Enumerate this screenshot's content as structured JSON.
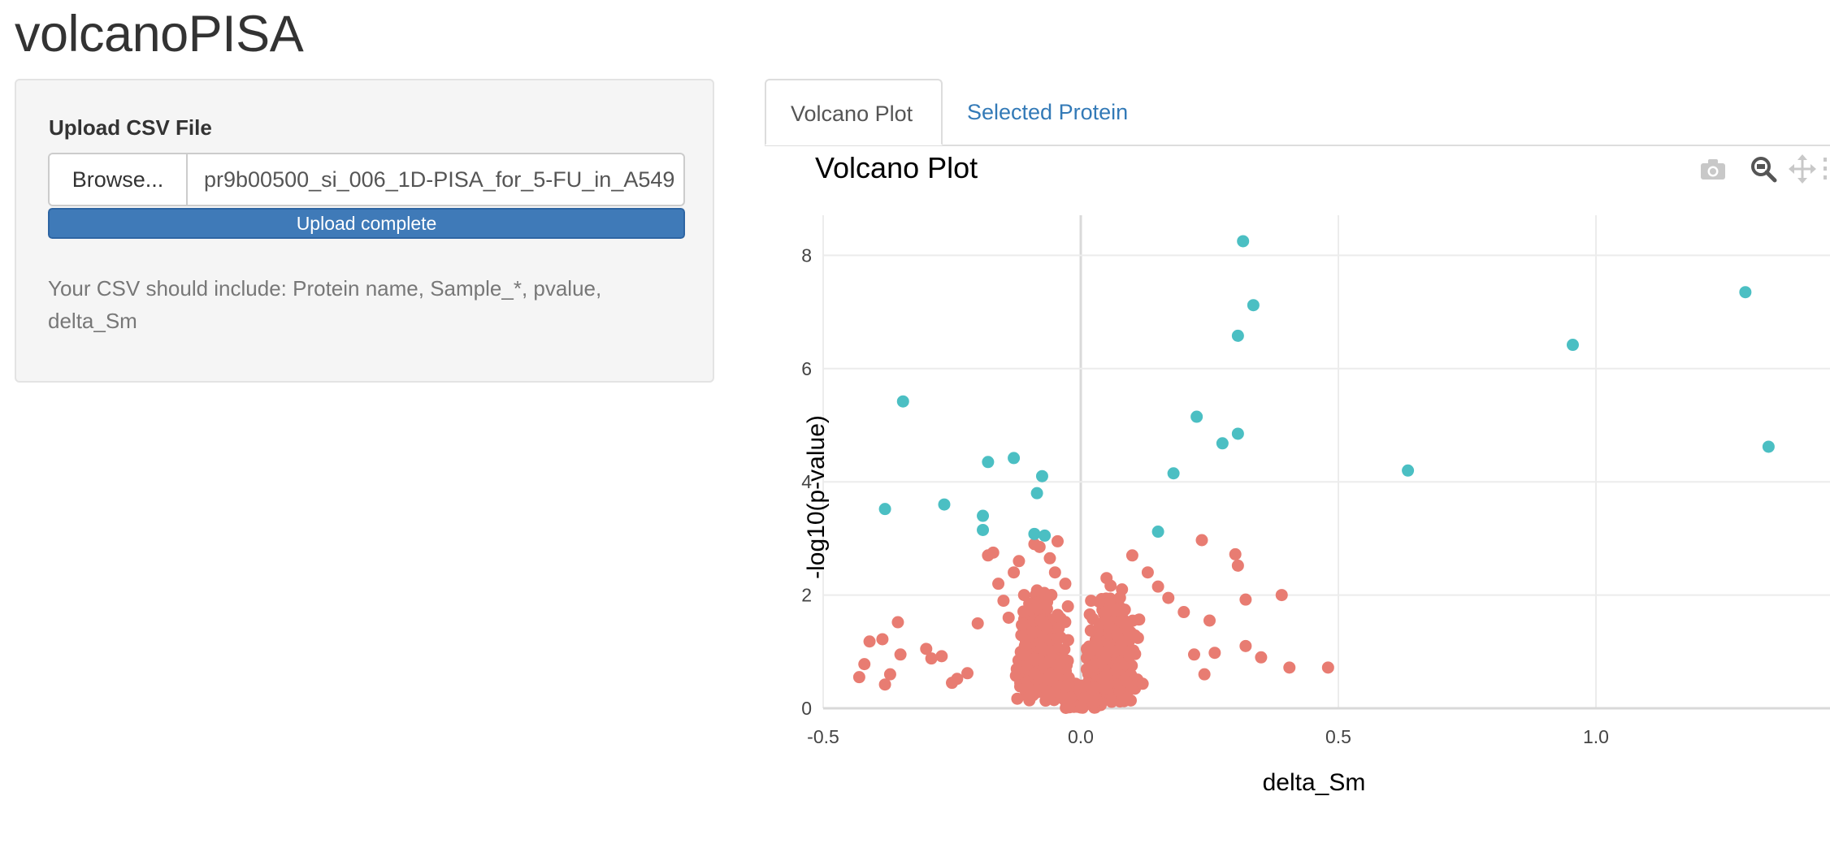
{
  "app": {
    "title": "volcanoPISA"
  },
  "sidebar": {
    "upload_label": "Upload CSV File",
    "browse_label": "Browse...",
    "file_name": "pr9b00500_si_006_1D-PISA_for_5-FU_in_A549",
    "progress_text": "Upload complete",
    "progress_fraction": 1.0,
    "help_text": "Your CSV should include: Protein name, Sample_*, pvalue, delta_Sm"
  },
  "tabs": [
    {
      "label": "Volcano Plot",
      "active": true
    },
    {
      "label": "Selected Protein",
      "active": false
    }
  ],
  "plot": {
    "title": "Volcano Plot",
    "modebar_icons": [
      "camera-icon",
      "zoom-icon",
      "pan-icon",
      "more-icon"
    ]
  },
  "colors": {
    "significant": "#4bbfc3",
    "nonsignificant": "#e87c72",
    "link": "#337ab7",
    "progress": "#3f7ab8"
  },
  "chart_data": {
    "type": "scatter",
    "title": "Volcano Plot",
    "xlabel": "delta_Sm",
    "ylabel": "-log10(p-value)",
    "xlim": [
      -0.5,
      1.4
    ],
    "ylim": [
      0,
      8.6
    ],
    "x_ticks": [
      "-0.5",
      "0.0",
      "0.5",
      "1.0"
    ],
    "y_ticks": [
      "0",
      "2",
      "4",
      "6",
      "8"
    ],
    "grid": true,
    "legend": "none",
    "series": [
      {
        "points": [
          [
            0.315,
            8.25
          ],
          [
            1.29,
            7.35
          ],
          [
            0.335,
            7.12
          ],
          [
            0.305,
            6.58
          ],
          [
            0.955,
            6.42
          ],
          [
            1.335,
            4.62
          ],
          [
            -0.345,
            5.42
          ],
          [
            0.225,
            5.15
          ],
          [
            0.305,
            4.85
          ],
          [
            0.275,
            4.68
          ],
          [
            -0.13,
            4.42
          ],
          [
            -0.18,
            4.35
          ],
          [
            0.635,
            4.2
          ],
          [
            0.18,
            4.15
          ],
          [
            -0.075,
            4.1
          ],
          [
            -0.085,
            3.8
          ],
          [
            -0.265,
            3.6
          ],
          [
            -0.19,
            3.4
          ],
          [
            -0.38,
            3.52
          ],
          [
            -0.19,
            3.15
          ],
          [
            0.15,
            3.12
          ],
          [
            -0.09,
            3.08
          ],
          [
            -0.07,
            3.05
          ]
        ]
      },
      {
        "points": [
          [
            -0.43,
            0.55
          ],
          [
            -0.42,
            0.78
          ],
          [
            -0.41,
            1.18
          ],
          [
            -0.385,
            1.22
          ],
          [
            -0.38,
            0.42
          ],
          [
            -0.37,
            0.6
          ],
          [
            -0.355,
            1.52
          ],
          [
            -0.35,
            0.95
          ],
          [
            -0.3,
            1.05
          ],
          [
            -0.29,
            0.88
          ],
          [
            -0.27,
            0.92
          ],
          [
            -0.25,
            0.45
          ],
          [
            -0.24,
            0.52
          ],
          [
            -0.22,
            0.62
          ],
          [
            -0.2,
            1.5
          ],
          [
            -0.18,
            2.7
          ],
          [
            -0.17,
            2.75
          ],
          [
            -0.16,
            2.2
          ],
          [
            -0.15,
            1.9
          ],
          [
            -0.14,
            1.6
          ],
          [
            -0.13,
            2.4
          ],
          [
            -0.12,
            2.6
          ],
          [
            -0.11,
            2.0
          ],
          [
            -0.09,
            2.9
          ],
          [
            -0.08,
            2.85
          ],
          [
            -0.06,
            2.65
          ],
          [
            -0.05,
            2.4
          ],
          [
            -0.045,
            2.95
          ],
          [
            -0.03,
            2.2
          ],
          [
            -0.025,
            1.8
          ],
          [
            0.02,
            1.9
          ],
          [
            0.05,
            2.3
          ],
          [
            0.08,
            2.1
          ],
          [
            0.1,
            2.7
          ],
          [
            0.13,
            2.4
          ],
          [
            0.15,
            2.15
          ],
          [
            0.17,
            1.95
          ],
          [
            0.2,
            1.7
          ],
          [
            0.22,
            0.95
          ],
          [
            0.235,
            2.97
          ],
          [
            0.24,
            0.6
          ],
          [
            0.25,
            1.55
          ],
          [
            0.26,
            0.98
          ],
          [
            0.3,
            2.72
          ],
          [
            0.305,
            2.52
          ],
          [
            0.32,
            1.92
          ],
          [
            0.32,
            1.1
          ],
          [
            0.35,
            0.9
          ],
          [
            0.39,
            2.0
          ],
          [
            0.405,
            0.72
          ],
          [
            0.48,
            0.72
          ]
        ]
      }
    ]
  }
}
